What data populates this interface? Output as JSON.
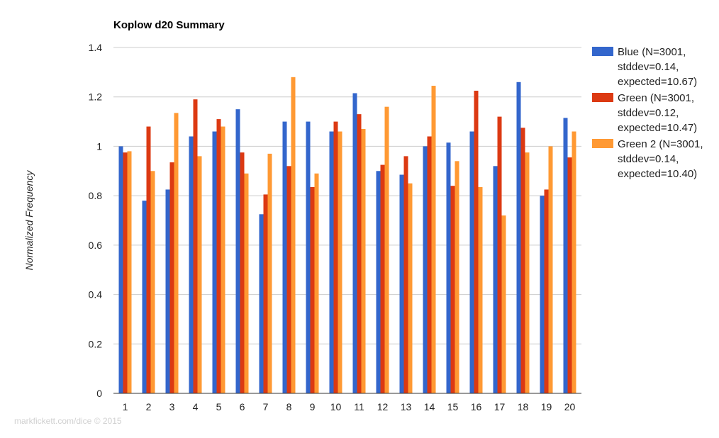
{
  "chart_data": {
    "type": "bar",
    "title": "Koplow d20 Summary",
    "xlabel": "",
    "ylabel": "Normalized Frequency",
    "ylim": [
      0,
      1.4
    ],
    "yticks": [
      "0",
      "0.2",
      "0.4",
      "0.6",
      "0.8",
      "1",
      "1.2",
      "1.4"
    ],
    "ytick_values": [
      0,
      0.2,
      0.4,
      0.6,
      0.8,
      1.0,
      1.2,
      1.4
    ],
    "grid": true,
    "legend_position": "right",
    "categories": [
      "1",
      "2",
      "3",
      "4",
      "5",
      "6",
      "7",
      "8",
      "9",
      "10",
      "11",
      "12",
      "13",
      "14",
      "15",
      "16",
      "17",
      "18",
      "19",
      "20"
    ],
    "series": [
      {
        "name": "Blue (N=3001, stddev=0.14, expected=10.67)",
        "legend_lines": [
          "Blue (N=3001,",
          "stddev=0.14,",
          "expected=10.67)"
        ],
        "color": "#3366cc",
        "values": [
          1.0,
          0.78,
          0.825,
          1.04,
          1.06,
          1.15,
          0.725,
          1.1,
          1.1,
          1.06,
          1.215,
          0.9,
          0.885,
          1.0,
          1.015,
          1.06,
          0.92,
          1.26,
          0.8,
          1.115
        ]
      },
      {
        "name": "Green (N=3001, stddev=0.12, expected=10.47)",
        "legend_lines": [
          "Green (N=3001,",
          "stddev=0.12,",
          "expected=10.47)"
        ],
        "color": "#dc3912",
        "values": [
          0.975,
          1.08,
          0.935,
          1.19,
          1.11,
          0.975,
          0.805,
          0.92,
          0.835,
          1.1,
          1.13,
          0.925,
          0.96,
          1.04,
          0.84,
          1.225,
          1.12,
          1.075,
          0.825,
          0.955
        ]
      },
      {
        "name": "Green 2 (N=3001, stddev=0.14, expected=10.40)",
        "legend_lines": [
          "Green 2 (N=3001,",
          "stddev=0.14,",
          "expected=10.40)"
        ],
        "color": "#ff9933",
        "values": [
          0.98,
          0.9,
          1.135,
          0.96,
          1.08,
          0.89,
          0.97,
          1.28,
          0.89,
          1.06,
          1.07,
          1.16,
          0.85,
          1.245,
          0.94,
          0.835,
          0.72,
          0.975,
          1.0,
          1.06
        ]
      }
    ]
  },
  "footer": {
    "watermark": "markfickett.com/dice © 2015"
  }
}
